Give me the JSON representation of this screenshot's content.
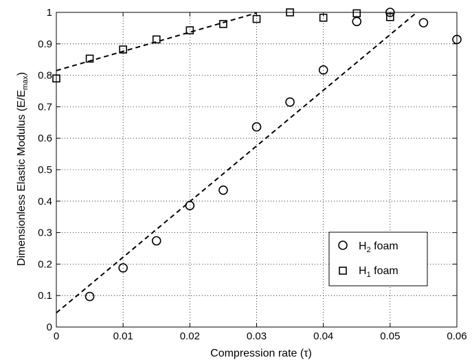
{
  "chart_data": {
    "type": "scatter",
    "title": "",
    "xlabel": "Compression rate (τ)",
    "ylabel": "Dimensionless Elastic Modulus (E/E",
    "ylabel_sub": "max",
    "ylabel_end": ")",
    "xlim": [
      0,
      0.06
    ],
    "ylim": [
      0,
      1
    ],
    "x_ticks": [
      0,
      0.01,
      0.02,
      0.03,
      0.04,
      0.05,
      0.06
    ],
    "x_tick_labels": [
      "0",
      "0.01",
      "0.02",
      "0.03",
      "0.04",
      "0.05",
      "0.06"
    ],
    "y_ticks": [
      0,
      0.1,
      0.2,
      0.3,
      0.4,
      0.5,
      0.6,
      0.7,
      0.8,
      0.9,
      1
    ],
    "y_tick_labels": [
      "0",
      "0.1",
      "0.2",
      "0.3",
      "0.4",
      "0.5",
      "0.6",
      "0.7",
      "0.8",
      "0.9",
      "1"
    ],
    "grid": true,
    "legend_position": "bottom-right",
    "series": [
      {
        "name": "H",
        "name_sub": "2",
        "name_end": " foam",
        "marker": "circle",
        "x": [
          0.005,
          0.01,
          0.015,
          0.02,
          0.025,
          0.03,
          0.035,
          0.04,
          0.045,
          0.05,
          0.055,
          0.06
        ],
        "y": [
          0.097,
          0.188,
          0.274,
          0.386,
          0.435,
          0.636,
          0.715,
          0.817,
          0.971,
          1.0,
          0.967,
          0.914
        ],
        "trendline": {
          "x": [
            0,
            0.054
          ],
          "y": [
            0.045,
            1.0
          ]
        }
      },
      {
        "name": "H",
        "name_sub": "1",
        "name_end": " foam",
        "marker": "square",
        "x": [
          0,
          0.005,
          0.01,
          0.015,
          0.02,
          0.025,
          0.03,
          0.035,
          0.04,
          0.045,
          0.05
        ],
        "y": [
          0.79,
          0.853,
          0.882,
          0.914,
          0.943,
          0.963,
          0.979,
          1.0,
          0.983,
          0.997,
          0.985
        ],
        "trendline": {
          "x": [
            0,
            0.03
          ],
          "y": [
            0.815,
            0.998
          ]
        }
      }
    ]
  }
}
